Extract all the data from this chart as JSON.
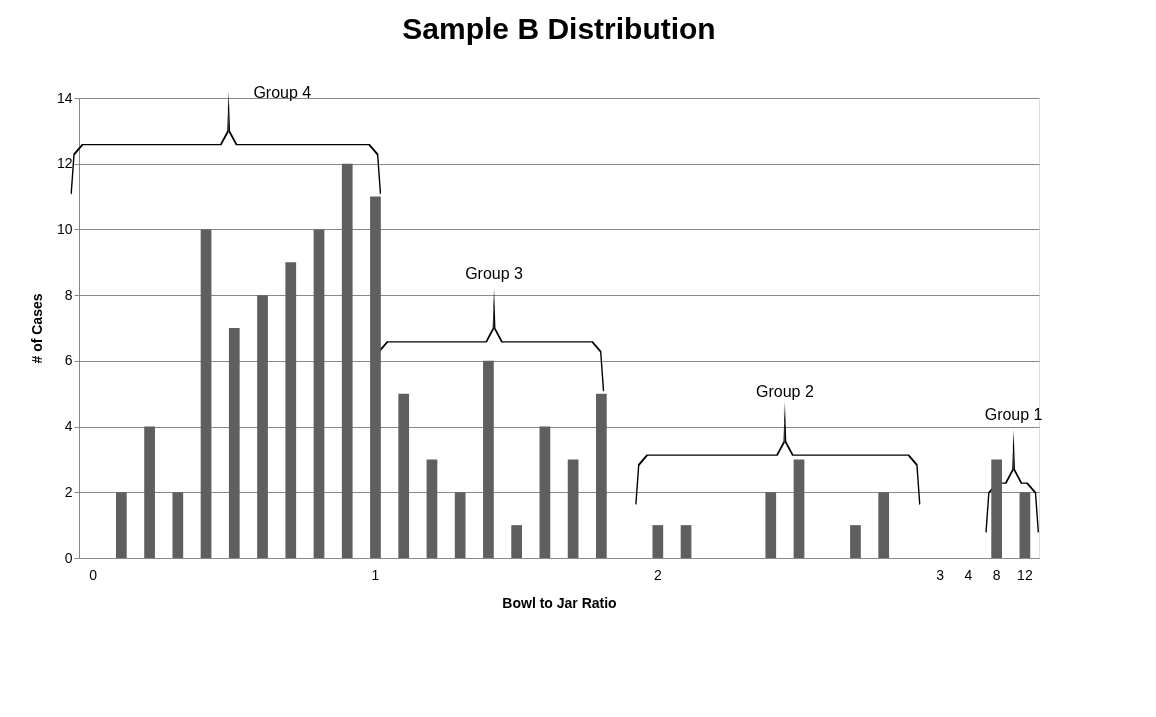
{
  "chart_data": {
    "type": "bar",
    "title": "Sample B Distribution",
    "xlabel": "Bowl to Jar Ratio",
    "ylabel": "# of Cases",
    "categories": [
      "0",
      null,
      null,
      null,
      null,
      null,
      null,
      null,
      null,
      null,
      "1",
      null,
      null,
      null,
      null,
      null,
      null,
      null,
      null,
      null,
      "2",
      null,
      null,
      null,
      null,
      null,
      null,
      null,
      null,
      null,
      "3",
      "4",
      "8",
      "12"
    ],
    "values": [
      0,
      2,
      4,
      2,
      10,
      7,
      8,
      9,
      10,
      12,
      11,
      5,
      3,
      2,
      6,
      1,
      4,
      3,
      5,
      0,
      1,
      1,
      0,
      0,
      2,
      3,
      0,
      1,
      2,
      0,
      0,
      0,
      3,
      2
    ],
    "color": "#5f5f5f",
    "ylim": [
      0,
      14
    ],
    "yticks": [
      0,
      2,
      4,
      6,
      8,
      10,
      12,
      14
    ],
    "grid": "y",
    "annotations": [
      "Group 4",
      "Group 3",
      "Group 2",
      "Group 1"
    ]
  }
}
